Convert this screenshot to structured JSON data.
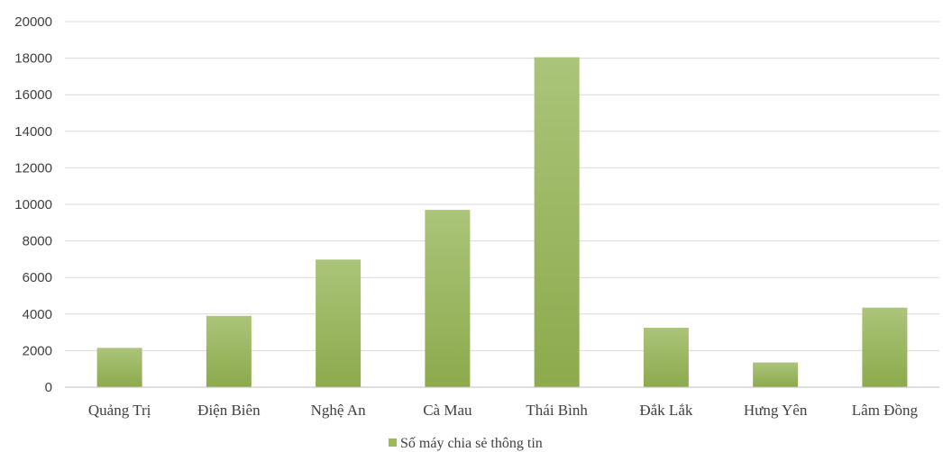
{
  "chart_data": {
    "type": "bar",
    "title": "",
    "xlabel": "",
    "ylabel": "",
    "categories": [
      "Quảng Trị",
      "Điện Biên",
      "Nghệ An",
      "Cà Mau",
      "Thái Bình",
      "Đắk Lắk",
      "Hưng Yên",
      "Lâm Đồng"
    ],
    "series": [
      {
        "name": "Số máy chia sẻ thông tin",
        "values": [
          2150,
          3900,
          6980,
          9700,
          18050,
          3250,
          1350,
          4350
        ],
        "color": "#9bbb59"
      }
    ],
    "ylim": [
      0,
      20000
    ],
    "yticks": [
      "0",
      "2000",
      "4000",
      "6000",
      "8000",
      "10000",
      "12000",
      "14000",
      "16000",
      "18000",
      "20000"
    ],
    "grid": true,
    "legend_position": "bottom"
  }
}
